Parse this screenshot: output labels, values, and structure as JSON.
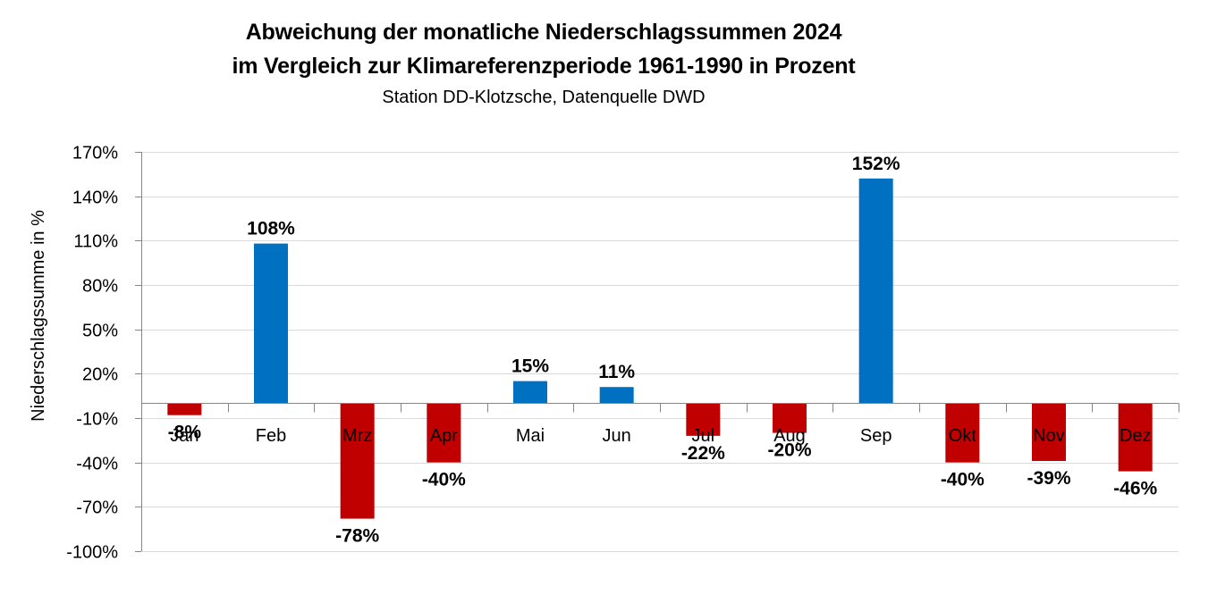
{
  "chart_data": {
    "type": "bar",
    "title": "Abweichung der monatliche Niederschlagssummen 2024",
    "subtitle": "im Vergleich zur Klimareferenzperiode 1961-1990 in Prozent",
    "subtitle2": "Station DD-Klotzsche, Datenquelle DWD",
    "xlabel": "",
    "ylabel": "Niederschlagssumme in %",
    "categories": [
      "Jan",
      "Feb",
      "Mrz",
      "Apr",
      "Mai",
      "Jun",
      "Jul",
      "Aug",
      "Sep",
      "Okt",
      "Nov",
      "Dez"
    ],
    "values": [
      -8,
      108,
      -78,
      -40,
      15,
      11,
      -22,
      -20,
      152,
      -40,
      -39,
      -46
    ],
    "data_labels": [
      "-8%",
      "108%",
      "-78%",
      "-40%",
      "15%",
      "11%",
      "-22%",
      "-20%",
      "152%",
      "-40%",
      "-39%",
      "-46%"
    ],
    "ylim": [
      -100,
      170
    ],
    "yticks": [
      170,
      140,
      110,
      80,
      50,
      20,
      -10,
      -40,
      -70,
      -100
    ],
    "ytick_labels": [
      "170%",
      "140%",
      "110%",
      "80%",
      "50%",
      "20%",
      "-10%",
      "-40%",
      "-70%",
      "-100%"
    ],
    "grid": true,
    "legend": "none",
    "colors": {
      "positive": "#0070C0",
      "negative": "#C00000",
      "grid": "#D9D9D9",
      "axis": "#868686"
    }
  }
}
